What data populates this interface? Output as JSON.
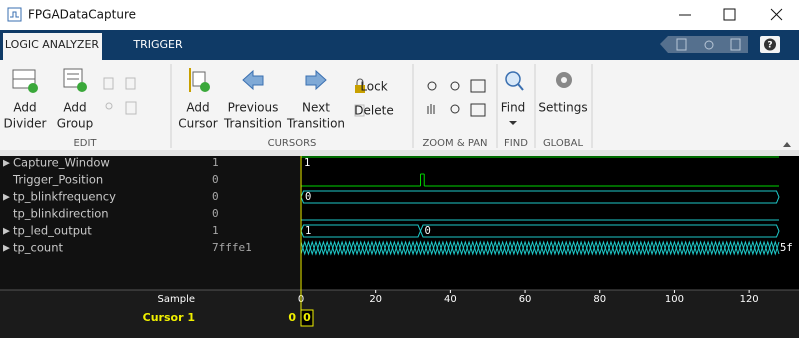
{
  "window": {
    "title": "FPGADataCapture"
  },
  "tabs": [
    "LOGIC ANALYZER",
    "TRIGGER"
  ],
  "toolstrip": {
    "sections": [
      {
        "label": "EDIT",
        "buttons": [
          [
            "Add",
            "Divider"
          ],
          [
            "Add",
            "Group"
          ]
        ]
      },
      {
        "label": "CURSORS",
        "buttons": [
          [
            "Add",
            "Cursor"
          ],
          [
            "Previous",
            "Transition"
          ],
          [
            "Next",
            "Transition"
          ]
        ],
        "small_buttons": [
          "Lock",
          "Delete"
        ]
      },
      {
        "label": "ZOOM & PAN",
        "buttons": []
      },
      {
        "label": "FIND",
        "buttons": [
          [
            "Find"
          ]
        ]
      },
      {
        "label": "GLOBAL",
        "buttons": [
          [
            "Settings"
          ]
        ]
      }
    ]
  },
  "signals": [
    {
      "name": "Capture_Window",
      "value": "1",
      "expandable": true,
      "color": "#00d400",
      "kind": "bit",
      "segments": [
        {
          "start": 0,
          "end": 128,
          "level": 1,
          "label": "1"
        }
      ]
    },
    {
      "name": "Trigger_Position",
      "value": "0",
      "expandable": false,
      "color": "#00d400",
      "kind": "bit",
      "segments": [
        {
          "start": 0,
          "end": 32,
          "level": 0
        },
        {
          "start": 32,
          "end": 33,
          "level": 1
        },
        {
          "start": 33,
          "end": 128,
          "level": 0
        }
      ]
    },
    {
      "name": "tp_blinkfrequency",
      "value": "0",
      "expandable": true,
      "color": "#1ec8c8",
      "kind": "bus",
      "segments": [
        {
          "start": 0,
          "end": 128,
          "label": "0"
        }
      ]
    },
    {
      "name": "tp_blinkdirection",
      "value": "0",
      "expandable": false,
      "color": "#1ec8c8",
      "kind": "bit",
      "segments": [
        {
          "start": 0,
          "end": 128,
          "level": 0
        }
      ]
    },
    {
      "name": "tp_led_output",
      "value": "1",
      "expandable": true,
      "color": "#1ec8c8",
      "kind": "bus",
      "segments": [
        {
          "start": 0,
          "end": 32,
          "label": "1"
        },
        {
          "start": 32,
          "end": 128,
          "label": "0"
        }
      ]
    },
    {
      "name": "tp_count",
      "value": "7fffe1",
      "expandable": true,
      "color": "#1ec8c8",
      "kind": "dense-bus",
      "start": 0,
      "end": 128,
      "transition_step": 1,
      "end_label": "5f"
    }
  ],
  "axis": {
    "label": "Sample",
    "xlim": [
      0,
      128
    ],
    "xticks": [
      0,
      20,
      40,
      60,
      80,
      100,
      120
    ]
  },
  "cursor": {
    "label": "Cursor 1",
    "position": 0,
    "color": "#f0f000"
  }
}
